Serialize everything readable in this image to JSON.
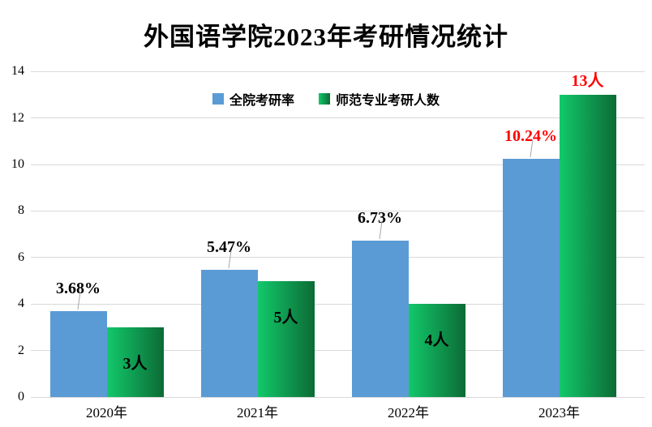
{
  "colors": {
    "background": "#FFFFFF",
    "series1_blue": "#5B9BD5",
    "series2_green_light": "#12C86B",
    "series2_green_dark": "#0C6B35",
    "highlight_red": "#FF0000",
    "text": "#000000",
    "gridline": "#D9D9D9",
    "leader_line": "#A6A6A6"
  },
  "chart_data": {
    "type": "bar",
    "title": "外国语学院2023年考研情况统计",
    "categories": [
      "2020年",
      "2021年",
      "2022年",
      "2023年"
    ],
    "series": [
      {
        "name": "全院考研率",
        "color": "#5B9BD5",
        "values": [
          3.68,
          5.47,
          6.73,
          10.24
        ],
        "labels": [
          "3.68%",
          "5.47%",
          "6.73%",
          "10.24%"
        ],
        "label_colors": [
          "#000000",
          "#000000",
          "#000000",
          "#FF0000"
        ],
        "label_placement": [
          "above",
          "above",
          "above",
          "above"
        ]
      },
      {
        "name": "师范专业考研人数",
        "gradient": [
          "#12C86B",
          "#0C6B35"
        ],
        "values": [
          3,
          5,
          4,
          13
        ],
        "labels": [
          "3人",
          "5人",
          "4人",
          "13人"
        ],
        "label_colors": [
          "#000000",
          "#000000",
          "#000000",
          "#FF0000"
        ],
        "label_placement": [
          "inside",
          "inside",
          "inside",
          "above"
        ]
      }
    ],
    "xlabel": "",
    "ylabel": "",
    "ylim": [
      0,
      14
    ],
    "yticks": [
      0,
      2,
      4,
      6,
      8,
      10,
      12,
      14
    ],
    "grid": true,
    "legend_position": "top-center"
  }
}
